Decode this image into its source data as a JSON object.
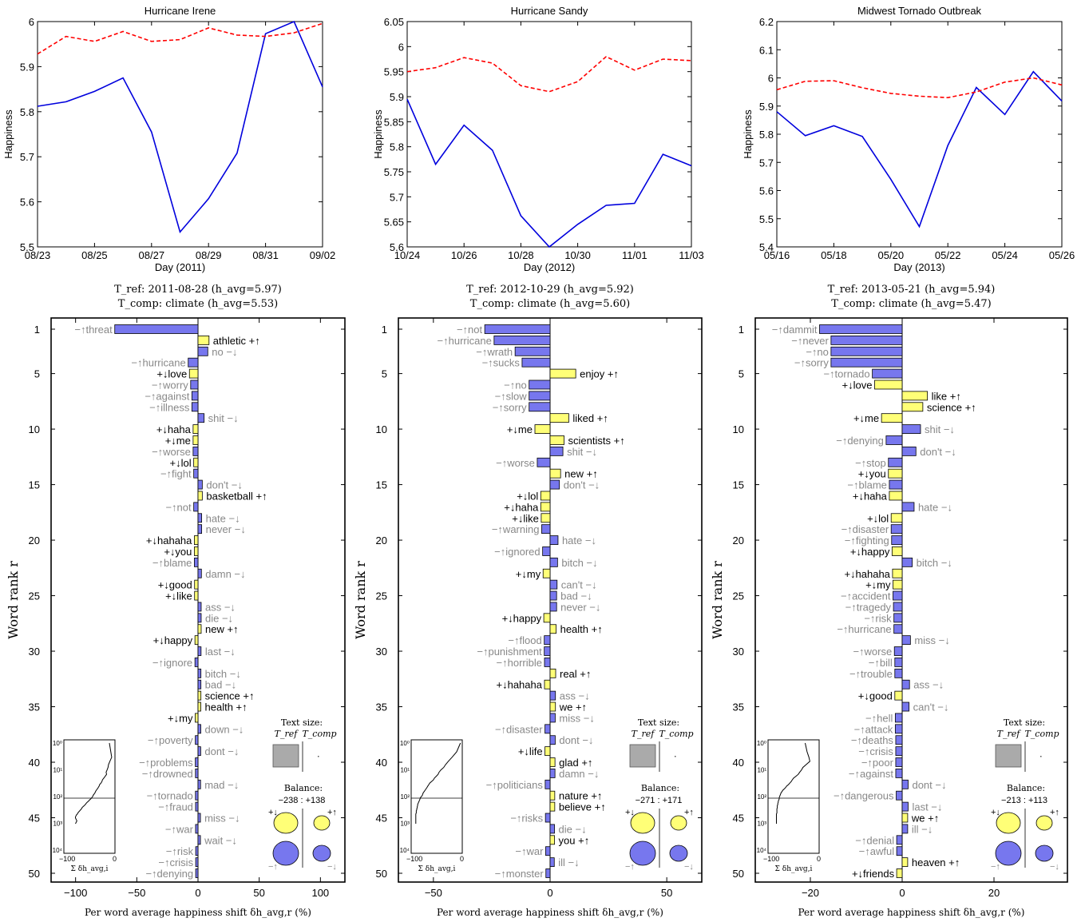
{
  "colors": {
    "blue_line": "#0000dd",
    "red_dashed": "#ff0000",
    "bar_positive_yellow": "#ffff77",
    "bar_negative_blue": "#7777ee",
    "word_dark": "#000000",
    "word_gray": "#888888",
    "size_box_gray": "#aaaaaa"
  },
  "labels": {
    "y_axis_top": "Happiness",
    "y_axis_bottom": "Word rank r",
    "x_axis_bottom": "Per word average happiness shift δh_avg,r (%)",
    "text_size_title": "Text size:",
    "text_size_ref": "T_ref",
    "text_size_comp": "T_comp",
    "balance_title": "Balance:",
    "inset_xlabel": "Σ δh_avg,i",
    "inset_tick_left": "−100",
    "inset_tick_right": "0",
    "inset_yticks": [
      "10⁰",
      "10¹",
      "10²",
      "10³",
      "10⁴"
    ],
    "sym_plus_down": "+↓",
    "sym_plus_up": "+↑",
    "sym_minus_up": "−↑",
    "sym_minus_down": "−↓"
  },
  "chart_data": [
    {
      "type": "line",
      "title": "Hurricane Irene",
      "xlabel": "Day (2011)",
      "ylabel": "Happiness",
      "x_tick_labels": [
        "08/23",
        "08/25",
        "08/27",
        "08/29",
        "08/31",
        "09/02"
      ],
      "x": [
        "08/23",
        "08/24",
        "08/25",
        "08/26",
        "08/27",
        "08/28",
        "08/29",
        "08/30",
        "08/31",
        "09/01",
        "09/02"
      ],
      "ylim": [
        5.5,
        6.0
      ],
      "yticks": [
        5.5,
        5.6,
        5.7,
        5.8,
        5.9,
        6.0
      ],
      "series": [
        {
          "style": "solid",
          "color": "#0000dd",
          "values": [
            5.812,
            5.822,
            5.845,
            5.875,
            5.755,
            5.533,
            5.607,
            5.708,
            5.973,
            6.0,
            5.855
          ]
        },
        {
          "style": "dashed",
          "color": "#ff0000",
          "values": [
            5.928,
            5.967,
            5.956,
            5.978,
            5.956,
            5.96,
            5.986,
            5.97,
            5.967,
            5.975,
            5.996
          ]
        }
      ]
    },
    {
      "type": "line",
      "title": "Hurricane Sandy",
      "xlabel": "Day (2012)",
      "ylabel": "Happiness",
      "x_tick_labels": [
        "10/24",
        "10/26",
        "10/28",
        "10/30",
        "11/01",
        "11/03"
      ],
      "x": [
        "10/24",
        "10/25",
        "10/26",
        "10/27",
        "10/28",
        "10/29",
        "10/30",
        "10/31",
        "11/01",
        "11/02",
        "11/03"
      ],
      "ylim": [
        5.6,
        6.05
      ],
      "yticks": [
        5.6,
        5.65,
        5.7,
        5.75,
        5.8,
        5.85,
        5.9,
        5.95,
        6.0,
        6.05
      ],
      "series": [
        {
          "style": "solid",
          "color": "#0000dd",
          "values": [
            5.895,
            5.765,
            5.843,
            5.793,
            5.662,
            5.6,
            5.645,
            5.683,
            5.687,
            5.785,
            5.762
          ]
        },
        {
          "style": "dashed",
          "color": "#ff0000",
          "values": [
            5.95,
            5.958,
            5.978,
            5.967,
            5.922,
            5.91,
            5.93,
            5.98,
            5.953,
            5.975,
            5.972
          ]
        }
      ]
    },
    {
      "type": "line",
      "title": "Midwest Tornado Outbreak",
      "xlabel": "Day (2013)",
      "ylabel": "Happiness",
      "x_tick_labels": [
        "05/16",
        "05/18",
        "05/20",
        "05/22",
        "05/24",
        "05/26"
      ],
      "x": [
        "05/16",
        "05/17",
        "05/18",
        "05/19",
        "05/20",
        "05/21",
        "05/22",
        "05/23",
        "05/24",
        "05/25",
        "05/26"
      ],
      "ylim": [
        5.4,
        6.2
      ],
      "yticks": [
        5.4,
        5.5,
        5.6,
        5.7,
        5.8,
        5.9,
        6.0,
        6.1,
        6.2
      ],
      "series": [
        {
          "style": "solid",
          "color": "#0000dd",
          "values": [
            5.88,
            5.795,
            5.83,
            5.792,
            5.64,
            5.472,
            5.76,
            5.966,
            5.87,
            6.022,
            5.918
          ]
        },
        {
          "style": "dashed",
          "color": "#ff0000",
          "values": [
            5.958,
            5.988,
            5.99,
            5.965,
            5.945,
            5.935,
            5.93,
            5.95,
            5.985,
            6.0,
            5.975
          ]
        }
      ]
    },
    {
      "type": "bar",
      "orientation": "horizontal",
      "header_ref": "T_ref: 2011-08-28 (h_avg=5.97)",
      "header_comp": "T_comp: climate (h_avg=5.53)",
      "xlabel": "Per word average happiness shift δh_avg,r (%)",
      "ylabel": "Word rank r",
      "xlim": [
        -120,
        120
      ],
      "xticks": [
        -100,
        -50,
        0,
        50,
        100
      ],
      "yticks": [
        1,
        5,
        10,
        15,
        20,
        25,
        30,
        35,
        40,
        45,
        50
      ],
      "balance": "−238 : +138",
      "words": [
        [
          "threat",
          "-u",
          -68
        ],
        [
          "athletic",
          "+u",
          9
        ],
        [
          "no",
          "-d",
          8
        ],
        [
          "hurricane",
          "-u",
          -8
        ],
        [
          "love",
          "+d",
          -7
        ],
        [
          "worry",
          "-u",
          -6
        ],
        [
          "against",
          "-u",
          -5
        ],
        [
          "illness",
          "-u",
          -5
        ],
        [
          "shit",
          "-d",
          5
        ],
        [
          "haha",
          "+d",
          -4
        ],
        [
          "me",
          "+d",
          -4
        ],
        [
          "worse",
          "-u",
          -4
        ],
        [
          "lol",
          "+d",
          -3.5
        ],
        [
          "fight",
          "-u",
          -3.5
        ],
        [
          "don't",
          "-d",
          3.5
        ],
        [
          "basketball",
          "+u",
          3.5
        ],
        [
          "not",
          "-u",
          -3.5
        ],
        [
          "hate",
          "-d",
          3
        ],
        [
          "never",
          "-d",
          3
        ],
        [
          "hahaha",
          "+d",
          -3
        ],
        [
          "you",
          "+d",
          -3
        ],
        [
          "blame",
          "-u",
          -3
        ],
        [
          "damn",
          "-d",
          2.8
        ],
        [
          "good",
          "+d",
          -2.8
        ],
        [
          "like",
          "+d",
          -2.8
        ],
        [
          "ass",
          "-d",
          2.6
        ],
        [
          "die",
          "-d",
          2.6
        ],
        [
          "new",
          "+u",
          2.6
        ],
        [
          "happy",
          "+d",
          -2.5
        ],
        [
          "last",
          "-d",
          2.5
        ],
        [
          "ignore",
          "-u",
          -2.5
        ],
        [
          "bitch",
          "-d",
          2.4
        ],
        [
          "bad",
          "-d",
          2.4
        ],
        [
          "science",
          "+u",
          2.4
        ],
        [
          "health",
          "+u",
          2.3
        ],
        [
          "my",
          "+d",
          -2.3
        ],
        [
          "down",
          "-d",
          2.3
        ],
        [
          "poverty",
          "-u",
          -2.2
        ],
        [
          "dont",
          "-d",
          2.2
        ],
        [
          "problems",
          "-u",
          -2.2
        ],
        [
          "drowned",
          "-u",
          -2.1
        ],
        [
          "mad",
          "-d",
          2.1
        ],
        [
          "tornado",
          "-u",
          -2.1
        ],
        [
          "fraud",
          "-u",
          -2
        ],
        [
          "miss",
          "-d",
          2
        ],
        [
          "war",
          "-u",
          -2
        ],
        [
          "wait",
          "-d",
          2
        ],
        [
          "risk",
          "-u",
          -1.9
        ],
        [
          "crisis",
          "-u",
          -1.9
        ],
        [
          "denying",
          "-u",
          -1.9
        ]
      ],
      "inset_cumsum": [
        -12,
        -9,
        -7,
        -11,
        -14,
        -15,
        -17,
        -19,
        -18,
        -21,
        -24,
        -27,
        -28,
        -30,
        -33,
        -34,
        -36,
        -38,
        -40,
        -42,
        -43,
        -45,
        -47,
        -48,
        -50,
        -52,
        -55,
        -57,
        -60,
        -62,
        -64,
        -66,
        -69,
        -71,
        -72,
        -74,
        -76,
        -78,
        -80,
        -81,
        -83,
        -84,
        -85,
        -85,
        -84,
        -83,
        -82,
        -83,
        -84,
        -85
      ]
    },
    {
      "type": "bar",
      "orientation": "horizontal",
      "header_ref": "T_ref: 2012-10-29 (h_avg=5.92)",
      "header_comp": "T_comp: climate (h_avg=5.60)",
      "xlabel": "Per word average happiness shift δh_avg,r (%)",
      "ylabel": "Word rank r",
      "xlim": [
        -65,
        65
      ],
      "xticks": [
        -50,
        0,
        50
      ],
      "yticks": [
        1,
        5,
        10,
        15,
        20,
        25,
        30,
        35,
        40,
        45,
        50
      ],
      "balance": "−271 : +171",
      "words": [
        [
          "not",
          "-u",
          -28
        ],
        [
          "hurricane",
          "-u",
          -24
        ],
        [
          "wrath",
          "-u",
          -15
        ],
        [
          "sucks",
          "-u",
          -12
        ],
        [
          "enjoy",
          "+u",
          11
        ],
        [
          "no",
          "-u",
          -9
        ],
        [
          "slow",
          "-u",
          -9
        ],
        [
          "sorry",
          "-u",
          -9
        ],
        [
          "liked",
          "+u",
          8
        ],
        [
          "me",
          "+d",
          -6.5
        ],
        [
          "scientists",
          "+u",
          6
        ],
        [
          "shit",
          "-d",
          5.5
        ],
        [
          "worse",
          "-u",
          -5.5
        ],
        [
          "new",
          "+u",
          4.5
        ],
        [
          "don't",
          "-d",
          4
        ],
        [
          "lol",
          "+d",
          -4
        ],
        [
          "haha",
          "+d",
          -4
        ],
        [
          "like",
          "+d",
          -3.8
        ],
        [
          "warning",
          "-u",
          -3.6
        ],
        [
          "hate",
          "-d",
          3.4
        ],
        [
          "ignored",
          "-u",
          -3.2
        ],
        [
          "bitch",
          "-d",
          3.2
        ],
        [
          "my",
          "+d",
          -3
        ],
        [
          "can't",
          "-d",
          3
        ],
        [
          "bad",
          "-d",
          2.8
        ],
        [
          "never",
          "-d",
          2.8
        ],
        [
          "happy",
          "+d",
          -2.7
        ],
        [
          "health",
          "+u",
          2.6
        ],
        [
          "flood",
          "-u",
          -2.5
        ],
        [
          "punishment",
          "-u",
          -2.5
        ],
        [
          "horrible",
          "-u",
          -2.4
        ],
        [
          "real",
          "+u",
          2.4
        ],
        [
          "hahaha",
          "+d",
          -2.4
        ],
        [
          "ass",
          "-d",
          2.3
        ],
        [
          "we",
          "+u",
          2.3
        ],
        [
          "miss",
          "-d",
          2.2
        ],
        [
          "disaster",
          "-u",
          -2.2
        ],
        [
          "dont",
          "-d",
          2.2
        ],
        [
          "life",
          "+d",
          -2.2
        ],
        [
          "glad",
          "+u",
          2.1
        ],
        [
          "damn",
          "-d",
          2.1
        ],
        [
          "politicians",
          "-u",
          -2.1
        ],
        [
          "nature",
          "+u",
          2
        ],
        [
          "believe",
          "+u",
          2
        ],
        [
          "risks",
          "-u",
          -2
        ],
        [
          "die",
          "-d",
          1.9
        ],
        [
          "you",
          "+u",
          1.9
        ],
        [
          "war",
          "-u",
          -1.9
        ],
        [
          "ill",
          "-d",
          1.8
        ],
        [
          "monster",
          "-u",
          -1.8
        ]
      ],
      "inset_cumsum": [
        -4,
        -12,
        -22,
        -30,
        -36,
        -40,
        -46,
        -50,
        -52,
        -56,
        -60,
        -62,
        -66,
        -70,
        -72,
        -74,
        -76,
        -78,
        -80,
        -82,
        -84,
        -85,
        -86,
        -88,
        -90,
        -91,
        -92,
        -93,
        -94,
        -95,
        -96,
        -96,
        -97,
        -97,
        -98,
        -98,
        -99,
        -99,
        -99,
        -100,
        -100,
        -100,
        -100,
        -100,
        -100,
        -100,
        -100,
        -100,
        -100,
        -100
      ]
    },
    {
      "type": "bar",
      "orientation": "horizontal",
      "header_ref": "T_ref: 2013-05-21 (h_avg=5.94)",
      "header_comp": "T_comp: climate (h_avg=5.47)",
      "xlabel": "Per word average happiness shift δh_avg,r (%)",
      "ylabel": "Word rank r",
      "xlim": [
        -32,
        36
      ],
      "xticks": [
        -20,
        0,
        20
      ],
      "yticks": [
        1,
        5,
        10,
        15,
        20,
        25,
        30,
        35,
        40,
        45,
        50
      ],
      "balance": "−213 : +113",
      "words": [
        [
          "dammit",
          "-u",
          -18
        ],
        [
          "never",
          "-u",
          -15.5
        ],
        [
          "no",
          "-u",
          -15.5
        ],
        [
          "sorry",
          "-u",
          -15.5
        ],
        [
          "tornado",
          "-u",
          -6.5
        ],
        [
          "love",
          "+d",
          -6
        ],
        [
          "like",
          "+u",
          5.5
        ],
        [
          "science",
          "+u",
          4.5
        ],
        [
          "me",
          "+d",
          -4.5
        ],
        [
          "shit",
          "-d",
          4
        ],
        [
          "denying",
          "-u",
          -3.5
        ],
        [
          "don't",
          "-d",
          3
        ],
        [
          "stop",
          "-u",
          -3
        ],
        [
          "you",
          "+d",
          -3
        ],
        [
          "blame",
          "-u",
          -2.8
        ],
        [
          "haha",
          "+d",
          -2.8
        ],
        [
          "hate",
          "-d",
          2.6
        ],
        [
          "lol",
          "+d",
          -2.4
        ],
        [
          "disaster",
          "-u",
          -2.4
        ],
        [
          "fighting",
          "-u",
          -2.3
        ],
        [
          "happy",
          "+d",
          -2.2
        ],
        [
          "bitch",
          "-d",
          2.2
        ],
        [
          "hahaha",
          "+d",
          -2.1
        ],
        [
          "my",
          "+d",
          -2
        ],
        [
          "accident",
          "-u",
          -2
        ],
        [
          "tragedy",
          "-u",
          -1.9
        ],
        [
          "risk",
          "-u",
          -1.8
        ],
        [
          "hurricane",
          "-u",
          -1.8
        ],
        [
          "miss",
          "-d",
          1.8
        ],
        [
          "worse",
          "-u",
          -1.7
        ],
        [
          "bill",
          "-u",
          -1.6
        ],
        [
          "trouble",
          "-u",
          -1.6
        ],
        [
          "ass",
          "-d",
          1.6
        ],
        [
          "good",
          "+d",
          -1.6
        ],
        [
          "can't",
          "-d",
          1.5
        ],
        [
          "hell",
          "-u",
          -1.5
        ],
        [
          "attack",
          "-u",
          -1.5
        ],
        [
          "deaths",
          "-u",
          -1.4
        ],
        [
          "crisis",
          "-u",
          -1.4
        ],
        [
          "poor",
          "-u",
          -1.4
        ],
        [
          "against",
          "-u",
          -1.4
        ],
        [
          "dont",
          "-d",
          1.3
        ],
        [
          "dangerous",
          "-u",
          -1.3
        ],
        [
          "last",
          "-d",
          1.3
        ],
        [
          "we",
          "+u",
          1.2
        ],
        [
          "ill",
          "-d",
          1.2
        ],
        [
          "denial",
          "-u",
          -1.2
        ],
        [
          "awful",
          "-u",
          -1.2
        ],
        [
          "heaven",
          "+u",
          1.2
        ],
        [
          "friends",
          "+d",
          -1.2
        ]
      ],
      "inset_cumsum": [
        -30,
        -26,
        -22,
        -20,
        -28,
        -35,
        -38,
        -42,
        -45,
        -50,
        -55,
        -58,
        -60,
        -63,
        -66,
        -70,
        -72,
        -75,
        -78,
        -80,
        -82,
        -83,
        -84,
        -85,
        -86,
        -86,
        -87,
        -88,
        -88,
        -89,
        -89,
        -90,
        -90,
        -90,
        -91,
        -91,
        -91,
        -91,
        -91,
        -92,
        -92,
        -92,
        -92,
        -92,
        -92,
        -92,
        -92,
        -92,
        -92,
        -92
      ]
    }
  ]
}
